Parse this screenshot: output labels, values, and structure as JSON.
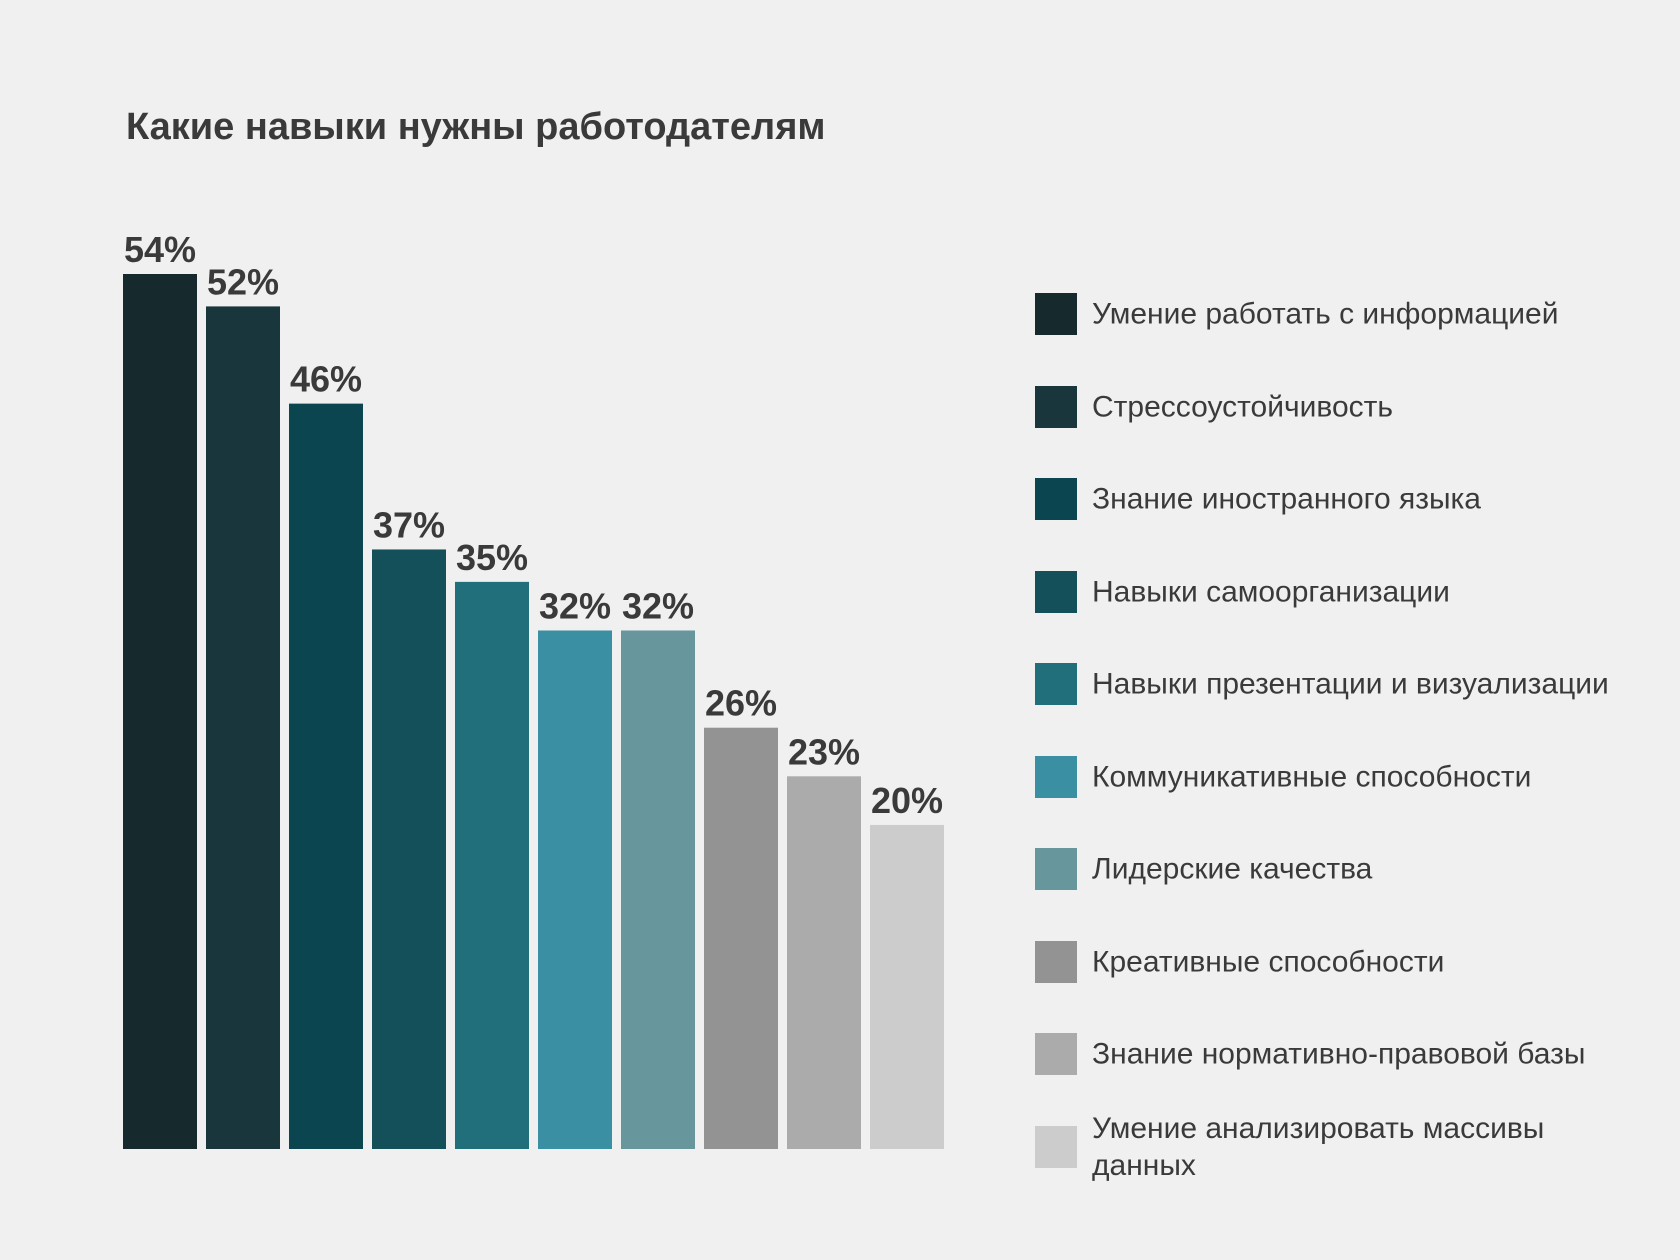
{
  "chart_data": {
    "type": "bar",
    "title": "Какие навыки нужны работодателям",
    "categories": [
      "Умение работать с информацией",
      "Стрессоустойчивость",
      "Знание иностранного языка",
      "Навыки самоорганизации",
      "Навыки презентации и визуализации",
      "Коммуникативные способности",
      "Лидерские качества",
      "Креативные способности",
      "Знание нормативно-правовой базы",
      "Умение анализировать массивы данных"
    ],
    "values": [
      54,
      52,
      46,
      37,
      35,
      32,
      32,
      26,
      23,
      20
    ],
    "value_labels": [
      "54%",
      "52%",
      "46%",
      "37%",
      "35%",
      "32%",
      "32%",
      "26%",
      "23%",
      "20%"
    ],
    "unit": "%",
    "colors": [
      "#16292d",
      "#19363d",
      "#0b4550",
      "#145059",
      "#206f7b",
      "#3a8fa2",
      "#67979d",
      "#939393",
      "#ababab",
      "#cccccc"
    ],
    "ylim": [
      0,
      54
    ],
    "xlabel": "",
    "ylabel": "",
    "grid": false,
    "axes_visible": false,
    "legend_position": "right"
  }
}
